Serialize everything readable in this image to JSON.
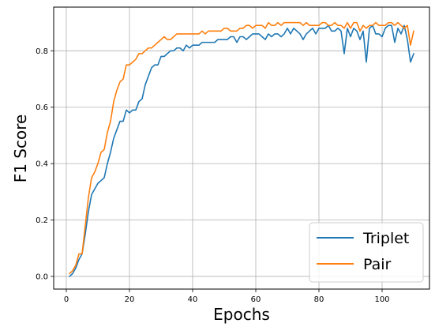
{
  "chart_data": {
    "type": "line",
    "xlabel": "Epochs",
    "ylabel": "F1 Score",
    "xlim": [
      -4,
      115
    ],
    "ylim": [
      -0.045,
      0.955
    ],
    "xticks": [
      0,
      20,
      40,
      60,
      80,
      100
    ],
    "yticks": [
      0.0,
      0.2,
      0.4,
      0.6,
      0.8
    ],
    "grid": true,
    "legend_position": "lower right",
    "series": [
      {
        "name": "Triplet",
        "color": "#1f77b4",
        "x": [
          1,
          2,
          3,
          4,
          5,
          6,
          7,
          8,
          9,
          10,
          11,
          12,
          13,
          14,
          15,
          16,
          17,
          18,
          19,
          20,
          21,
          22,
          23,
          24,
          25,
          26,
          27,
          28,
          29,
          30,
          31,
          32,
          33,
          34,
          35,
          36,
          37,
          38,
          39,
          40,
          41,
          42,
          43,
          44,
          45,
          46,
          47,
          48,
          49,
          50,
          51,
          52,
          53,
          54,
          55,
          56,
          57,
          58,
          59,
          60,
          61,
          62,
          63,
          64,
          65,
          66,
          67,
          68,
          69,
          70,
          71,
          72,
          73,
          74,
          75,
          76,
          77,
          78,
          79,
          80,
          81,
          82,
          83,
          84,
          85,
          86,
          87,
          88,
          89,
          90,
          91,
          92,
          93,
          94,
          95,
          96,
          97,
          98,
          99,
          100,
          101,
          102,
          103,
          104,
          105,
          106,
          107,
          108,
          109,
          110
        ],
        "values": [
          0.0,
          0.01,
          0.03,
          0.06,
          0.08,
          0.15,
          0.23,
          0.29,
          0.31,
          0.33,
          0.34,
          0.35,
          0.4,
          0.44,
          0.49,
          0.52,
          0.55,
          0.55,
          0.59,
          0.58,
          0.59,
          0.59,
          0.62,
          0.63,
          0.68,
          0.71,
          0.74,
          0.75,
          0.75,
          0.78,
          0.78,
          0.79,
          0.8,
          0.8,
          0.81,
          0.81,
          0.8,
          0.82,
          0.81,
          0.82,
          0.82,
          0.82,
          0.83,
          0.83,
          0.83,
          0.83,
          0.83,
          0.84,
          0.84,
          0.84,
          0.84,
          0.85,
          0.85,
          0.83,
          0.85,
          0.85,
          0.84,
          0.85,
          0.86,
          0.86,
          0.86,
          0.85,
          0.84,
          0.86,
          0.85,
          0.86,
          0.86,
          0.85,
          0.86,
          0.88,
          0.86,
          0.88,
          0.87,
          0.86,
          0.84,
          0.86,
          0.87,
          0.88,
          0.86,
          0.88,
          0.88,
          0.88,
          0.89,
          0.87,
          0.87,
          0.88,
          0.87,
          0.79,
          0.88,
          0.85,
          0.88,
          0.87,
          0.84,
          0.87,
          0.76,
          0.88,
          0.89,
          0.86,
          0.86,
          0.85,
          0.88,
          0.89,
          0.89,
          0.83,
          0.88,
          0.86,
          0.89,
          0.84,
          0.76,
          0.79
        ]
      },
      {
        "name": "Pair",
        "color": "#ff7f0e",
        "x": [
          1,
          2,
          3,
          4,
          5,
          6,
          7,
          8,
          9,
          10,
          11,
          12,
          13,
          14,
          15,
          16,
          17,
          18,
          19,
          20,
          21,
          22,
          23,
          24,
          25,
          26,
          27,
          28,
          29,
          30,
          31,
          32,
          33,
          34,
          35,
          36,
          37,
          38,
          39,
          40,
          41,
          42,
          43,
          44,
          45,
          46,
          47,
          48,
          49,
          50,
          51,
          52,
          53,
          54,
          55,
          56,
          57,
          58,
          59,
          60,
          61,
          62,
          63,
          64,
          65,
          66,
          67,
          68,
          69,
          70,
          71,
          72,
          73,
          74,
          75,
          76,
          77,
          78,
          79,
          80,
          81,
          82,
          83,
          84,
          85,
          86,
          87,
          88,
          89,
          90,
          91,
          92,
          93,
          94,
          95,
          96,
          97,
          98,
          99,
          100,
          101,
          102,
          103,
          104,
          105,
          106,
          107,
          108,
          109,
          110
        ],
        "values": [
          0.01,
          0.02,
          0.04,
          0.08,
          0.08,
          0.18,
          0.28,
          0.35,
          0.37,
          0.4,
          0.44,
          0.45,
          0.51,
          0.55,
          0.62,
          0.66,
          0.69,
          0.7,
          0.75,
          0.75,
          0.76,
          0.77,
          0.79,
          0.79,
          0.8,
          0.81,
          0.81,
          0.82,
          0.83,
          0.84,
          0.85,
          0.84,
          0.84,
          0.85,
          0.86,
          0.86,
          0.86,
          0.86,
          0.86,
          0.86,
          0.86,
          0.86,
          0.87,
          0.86,
          0.87,
          0.87,
          0.87,
          0.87,
          0.87,
          0.88,
          0.88,
          0.87,
          0.87,
          0.87,
          0.88,
          0.88,
          0.89,
          0.89,
          0.88,
          0.89,
          0.89,
          0.89,
          0.88,
          0.9,
          0.89,
          0.89,
          0.9,
          0.89,
          0.9,
          0.9,
          0.9,
          0.9,
          0.9,
          0.9,
          0.89,
          0.9,
          0.89,
          0.89,
          0.89,
          0.89,
          0.9,
          0.9,
          0.89,
          0.89,
          0.9,
          0.89,
          0.89,
          0.88,
          0.9,
          0.88,
          0.9,
          0.9,
          0.87,
          0.89,
          0.88,
          0.89,
          0.89,
          0.9,
          0.89,
          0.89,
          0.89,
          0.9,
          0.9,
          0.89,
          0.9,
          0.89,
          0.88,
          0.89,
          0.82,
          0.87
        ]
      }
    ]
  }
}
